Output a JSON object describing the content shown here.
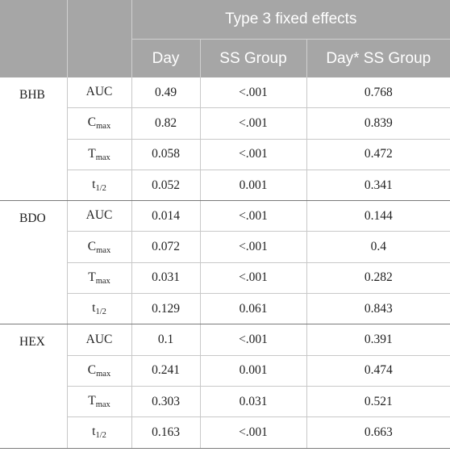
{
  "header": {
    "group_title": "Type 3 fixed effects",
    "columns": [
      "Day",
      "SS Group",
      "Day* SS Group"
    ]
  },
  "groups": [
    {
      "name": "BHB",
      "rows": [
        {
          "param": "AUC",
          "sub": "",
          "day": "0.49",
          "ss_group": "<.001",
          "interaction": "0.768"
        },
        {
          "param": "C",
          "sub": "max",
          "day": "0.82",
          "ss_group": "<.001",
          "interaction": "0.839"
        },
        {
          "param": "T",
          "sub": "max",
          "day": "0.058",
          "ss_group": "<.001",
          "interaction": "0.472"
        },
        {
          "param": "t",
          "sub": "1/2",
          "day": "0.052",
          "ss_group": "0.001",
          "interaction": "0.341"
        }
      ]
    },
    {
      "name": "BDO",
      "rows": [
        {
          "param": "AUC",
          "sub": "",
          "day": "0.014",
          "ss_group": "<.001",
          "interaction": "0.144"
        },
        {
          "param": "C",
          "sub": "max",
          "day": "0.072",
          "ss_group": "<.001",
          "interaction": "0.4"
        },
        {
          "param": "T",
          "sub": "max",
          "day": "0.031",
          "ss_group": "<.001",
          "interaction": "0.282"
        },
        {
          "param": "t",
          "sub": "1/2",
          "day": "0.129",
          "ss_group": "0.061",
          "interaction": "0.843"
        }
      ]
    },
    {
      "name": "HEX",
      "rows": [
        {
          "param": "AUC",
          "sub": "",
          "day": "0.1",
          "ss_group": "<.001",
          "interaction": "0.391"
        },
        {
          "param": "C",
          "sub": "max",
          "day": "0.241",
          "ss_group": "0.001",
          "interaction": "0.474"
        },
        {
          "param": "T",
          "sub": "max",
          "day": "0.303",
          "ss_group": "0.031",
          "interaction": "0.521"
        },
        {
          "param": "t",
          "sub": "1/2",
          "day": "0.163",
          "ss_group": "<.001",
          "interaction": "0.663"
        }
      ]
    }
  ]
}
